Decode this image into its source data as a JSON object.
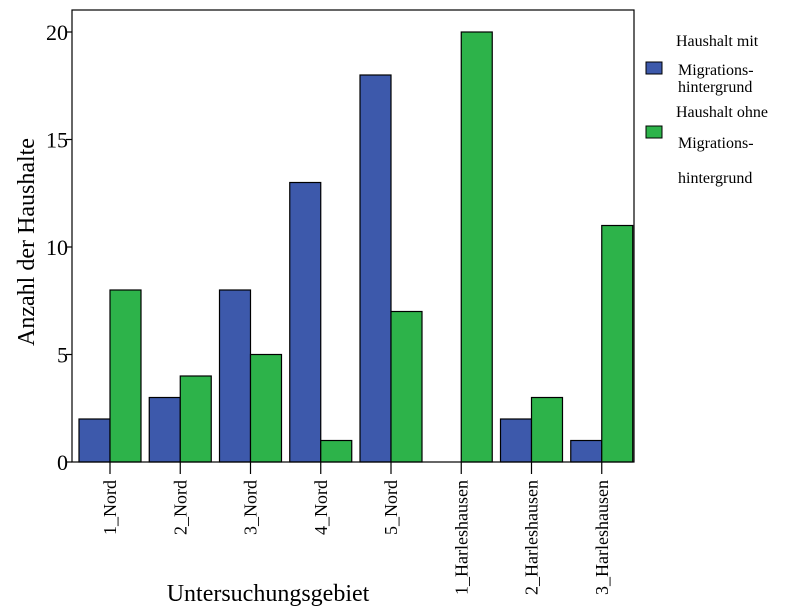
{
  "chart_data": {
    "type": "bar",
    "title": "",
    "xlabel": "Untersuchungsgebiet",
    "ylabel": "Anzahl der Haushalte",
    "ylim": [
      0,
      20
    ],
    "yticks": [
      0,
      5,
      10,
      15,
      20
    ],
    "categories": [
      "1_Nord",
      "2_Nord",
      "3_Nord",
      "4_Nord",
      "5_Nord",
      "1_Harleshausen",
      "2_Harleshausen",
      "3_Harleshausen"
    ],
    "series": [
      {
        "name": "Haushalt mit Migrationshintergrund",
        "legend_lines": [
          "Haushalt mit",
          "Migrations-",
          "hintergrund"
        ],
        "color": "#3d59ab",
        "values": [
          2,
          3,
          8,
          13,
          18,
          0,
          2,
          1
        ]
      },
      {
        "name": "Haushalt ohne Migrationshintergrund",
        "legend_lines": [
          "Haushalt ohne",
          "Migrations-",
          "hintergrund"
        ],
        "color": "#2db34a",
        "values": [
          8,
          4,
          5,
          1,
          7,
          20,
          3,
          11
        ]
      }
    ],
    "legend_position": "right",
    "grid": false
  }
}
